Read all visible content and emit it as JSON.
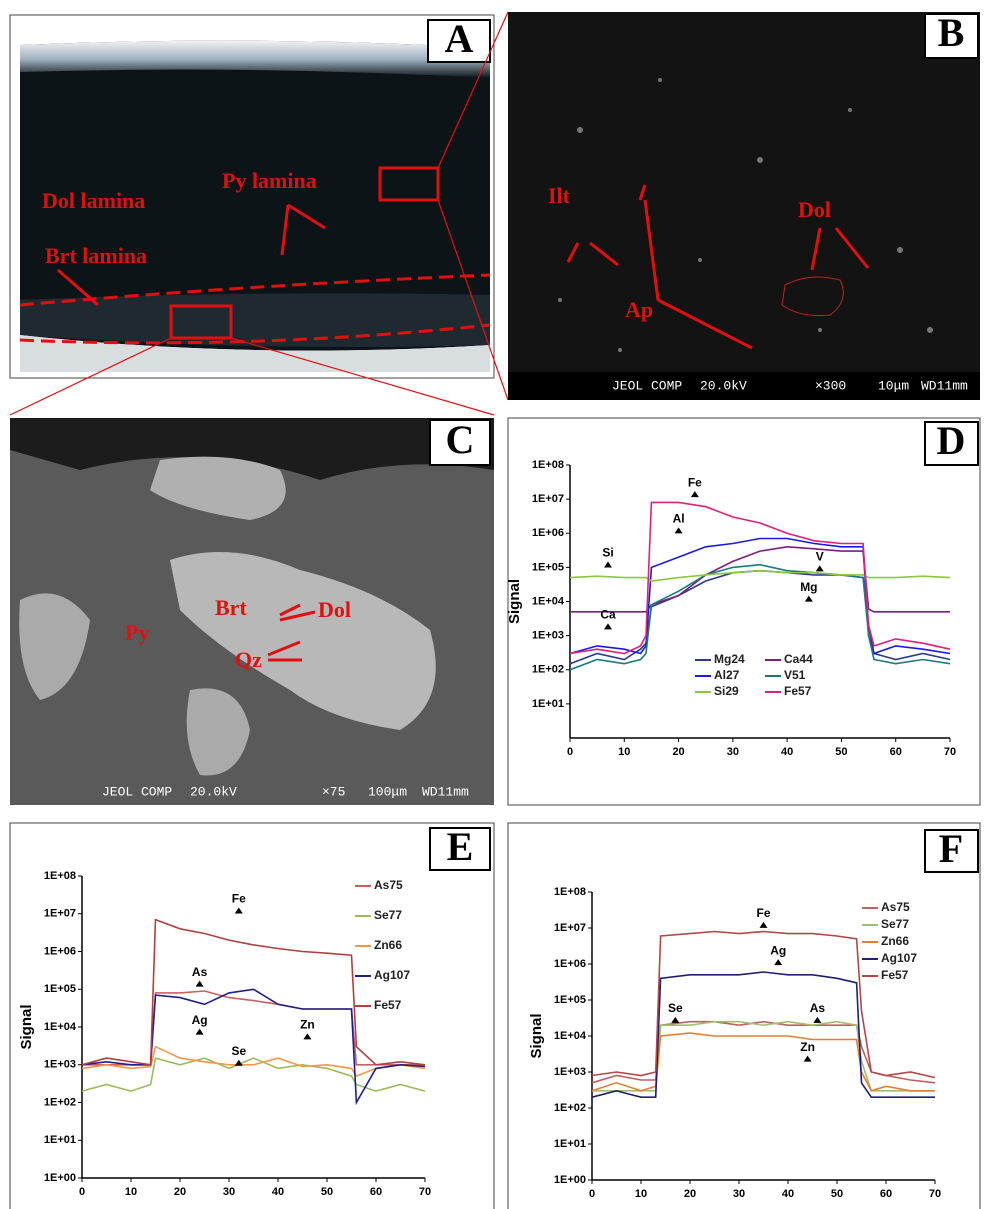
{
  "panels": {
    "A": {
      "letter": "A",
      "labels": [
        "Dol lamina",
        "Py lamina",
        "Brt lamina"
      ]
    },
    "B": {
      "letter": "B",
      "labels": [
        "Ilt",
        "Dol",
        "Ap"
      ],
      "sem_bar": [
        "JEOL COMP",
        "20.0kV",
        "×300",
        "10μm",
        "WD11mm"
      ]
    },
    "C": {
      "letter": "C",
      "labels": [
        "Brt",
        "Dol",
        "Py",
        "Qz"
      ],
      "sem_bar": [
        "JEOL COMP",
        "20.0kV",
        "×75",
        "100μm",
        "WD11mm"
      ]
    },
    "D": {
      "letter": "D"
    },
    "E": {
      "letter": "E"
    },
    "F": {
      "letter": "F"
    }
  },
  "chart_data": [
    {
      "type": "line",
      "ylabel": "Signal",
      "log_y": true,
      "legend": "lower center",
      "x": [
        0,
        5,
        10,
        13,
        14,
        15,
        20,
        25,
        30,
        35,
        40,
        45,
        50,
        54,
        55,
        56,
        60,
        65,
        70
      ],
      "xlim": [
        0,
        70
      ],
      "xticks": [
        0,
        10,
        20,
        30,
        40,
        50,
        60,
        70
      ],
      "ylim": [
        1,
        100000000
      ],
      "yticks": [
        {
          "value": 10,
          "label": "1E+01"
        },
        {
          "value": 100,
          "label": "1E+02"
        },
        {
          "value": 1000,
          "label": "1E+03"
        },
        {
          "value": 10000,
          "label": "1E+04"
        },
        {
          "value": 100000,
          "label": "1E+05"
        },
        {
          "value": 1000000,
          "label": "1E+06"
        },
        {
          "value": 10000000,
          "label": "1E+07"
        },
        {
          "value": 100000000,
          "label": "1E+08"
        }
      ],
      "annotations": [
        "Fe",
        "Al",
        "Si",
        "Ca",
        "V",
        "Mg"
      ],
      "series": [
        {
          "name": "Mg24",
          "color": "#2b3a8a",
          "values": [
            150,
            300,
            200,
            400,
            600,
            7000,
            15000,
            40000,
            70000,
            80000,
            70000,
            60000,
            60000,
            50000,
            2000,
            300,
            200,
            300,
            200
          ]
        },
        {
          "name": "Ca44",
          "color": "#7b1f7b",
          "values": [
            5000,
            5000,
            5000,
            5000,
            5000,
            8000,
            15000,
            60000,
            150000,
            300000,
            400000,
            350000,
            300000,
            300000,
            6000,
            5000,
            5000,
            5000,
            5000
          ]
        },
        {
          "name": "Al27",
          "color": "#1a1ae0",
          "values": [
            300,
            500,
            400,
            300,
            500,
            100000,
            200000,
            400000,
            500000,
            700000,
            700000,
            500000,
            400000,
            400000,
            1000,
            300,
            500,
            400,
            300
          ]
        },
        {
          "name": "V51",
          "color": "#1a7a7a",
          "values": [
            100,
            200,
            150,
            200,
            300,
            8000,
            20000,
            60000,
            100000,
            120000,
            80000,
            70000,
            60000,
            50000,
            1000,
            200,
            150,
            200,
            150
          ]
        },
        {
          "name": "Si29",
          "color": "#8cc63f",
          "values": [
            50000,
            55000,
            50000,
            50000,
            50000,
            40000,
            50000,
            60000,
            70000,
            80000,
            70000,
            70000,
            60000,
            60000,
            50000,
            50000,
            50000,
            55000,
            50000
          ]
        },
        {
          "name": "Fe57",
          "color": "#e0207a",
          "values": [
            300,
            400,
            300,
            500,
            1000,
            8000000,
            8000000,
            6000000,
            3000000,
            2000000,
            1000000,
            600000,
            500000,
            500000,
            2000,
            500,
            800,
            600,
            400
          ]
        }
      ]
    },
    {
      "type": "line",
      "ylabel": "Signal",
      "log_y": true,
      "legend": "upper right",
      "x": [
        0,
        5,
        10,
        14,
        15,
        20,
        25,
        30,
        35,
        40,
        45,
        50,
        55,
        56,
        60,
        65,
        70
      ],
      "xlim": [
        0,
        70
      ],
      "xticks": [
        0,
        10,
        20,
        30,
        40,
        50,
        60,
        70
      ],
      "ylim": [
        1,
        100000000
      ],
      "yticks": [
        {
          "value": 1,
          "label": "1E+00"
        },
        {
          "value": 10,
          "label": "1E+01"
        },
        {
          "value": 100,
          "label": "1E+02"
        },
        {
          "value": 1000,
          "label": "1E+03"
        },
        {
          "value": 10000,
          "label": "1E+04"
        },
        {
          "value": 100000,
          "label": "1E+05"
        },
        {
          "value": 1000000,
          "label": "1E+06"
        },
        {
          "value": 10000000,
          "label": "1E+07"
        },
        {
          "value": 100000000,
          "label": "1E+08"
        }
      ],
      "annotations": [
        "Fe",
        "As",
        "Ag",
        "Se",
        "Zn"
      ],
      "series": [
        {
          "name": "As75",
          "color": "#c86060",
          "values": [
            1000,
            1000,
            1000,
            1000,
            80000,
            80000,
            90000,
            60000,
            50000,
            40000,
            30000,
            30000,
            30000,
            1000,
            1000,
            1000,
            1000
          ]
        },
        {
          "name": "Se77",
          "color": "#9bbb59",
          "values": [
            200,
            300,
            200,
            300,
            1500,
            1000,
            1500,
            800,
            1500,
            800,
            1000,
            800,
            500,
            300,
            200,
            300,
            200
          ]
        },
        {
          "name": "Zn66",
          "color": "#f79646",
          "values": [
            800,
            1000,
            800,
            900,
            3000,
            1500,
            1200,
            1000,
            1000,
            1500,
            900,
            1000,
            800,
            500,
            800,
            1000,
            800
          ]
        },
        {
          "name": "Ag107",
          "color": "#1f1f8f",
          "values": [
            1000,
            1200,
            1000,
            1000,
            70000,
            60000,
            40000,
            80000,
            100000,
            40000,
            30000,
            30000,
            30000,
            100,
            800,
            1000,
            900
          ]
        },
        {
          "name": "Fe57",
          "color": "#b04040",
          "values": [
            1000,
            1500,
            1200,
            1000,
            7000000,
            4000000,
            3000000,
            2000000,
            1500000,
            1200000,
            1000000,
            900000,
            800000,
            3000,
            1000,
            1200,
            1000
          ]
        }
      ]
    },
    {
      "type": "line",
      "ylabel": "Signal",
      "log_y": true,
      "legend": "upper right",
      "x": [
        0,
        5,
        10,
        13,
        14,
        20,
        25,
        30,
        35,
        40,
        45,
        50,
        54,
        55,
        57,
        60,
        65,
        70
      ],
      "xlim": [
        0,
        70
      ],
      "xticks": [
        0,
        10,
        20,
        30,
        40,
        50,
        60,
        70
      ],
      "ylim": [
        1,
        100000000
      ],
      "yticks": [
        {
          "value": 1,
          "label": "1E+00"
        },
        {
          "value": 10,
          "label": "1E+01"
        },
        {
          "value": 100,
          "label": "1E+02"
        },
        {
          "value": 1000,
          "label": "1E+03"
        },
        {
          "value": 10000,
          "label": "1E+04"
        },
        {
          "value": 100000,
          "label": "1E+05"
        },
        {
          "value": 1000000,
          "label": "1E+06"
        },
        {
          "value": 10000000,
          "label": "1E+07"
        },
        {
          "value": 100000000,
          "label": "1E+08"
        }
      ],
      "annotations": [
        "Fe",
        "Ag",
        "Se",
        "As",
        "Zn"
      ],
      "series": [
        {
          "name": "As75",
          "color": "#c06060",
          "values": [
            500,
            800,
            600,
            600,
            20000,
            25000,
            25000,
            20000,
            25000,
            20000,
            20000,
            20000,
            20000,
            5000,
            1000,
            800,
            600,
            500
          ]
        },
        {
          "name": "Se77",
          "color": "#a0c070",
          "values": [
            300,
            300,
            300,
            300,
            20000,
            20000,
            25000,
            25000,
            20000,
            25000,
            20000,
            25000,
            20000,
            2000,
            300,
            300,
            300,
            300
          ]
        },
        {
          "name": "Zn66",
          "color": "#e08030",
          "values": [
            300,
            500,
            300,
            400,
            10000,
            12000,
            10000,
            10000,
            10000,
            10000,
            8000,
            8000,
            8000,
            1000,
            300,
            400,
            300,
            300
          ]
        },
        {
          "name": "Ag107",
          "color": "#202070",
          "values": [
            200,
            300,
            200,
            200,
            400000,
            500000,
            500000,
            500000,
            600000,
            500000,
            500000,
            400000,
            300000,
            500,
            200,
            200,
            200,
            200
          ]
        },
        {
          "name": "Fe57",
          "color": "#b04848",
          "values": [
            800,
            1000,
            800,
            1000,
            6000000,
            7000000,
            8000000,
            7000000,
            8000000,
            7000000,
            7000000,
            6000000,
            5000000,
            50000,
            1000,
            800,
            1000,
            700
          ]
        }
      ]
    }
  ]
}
